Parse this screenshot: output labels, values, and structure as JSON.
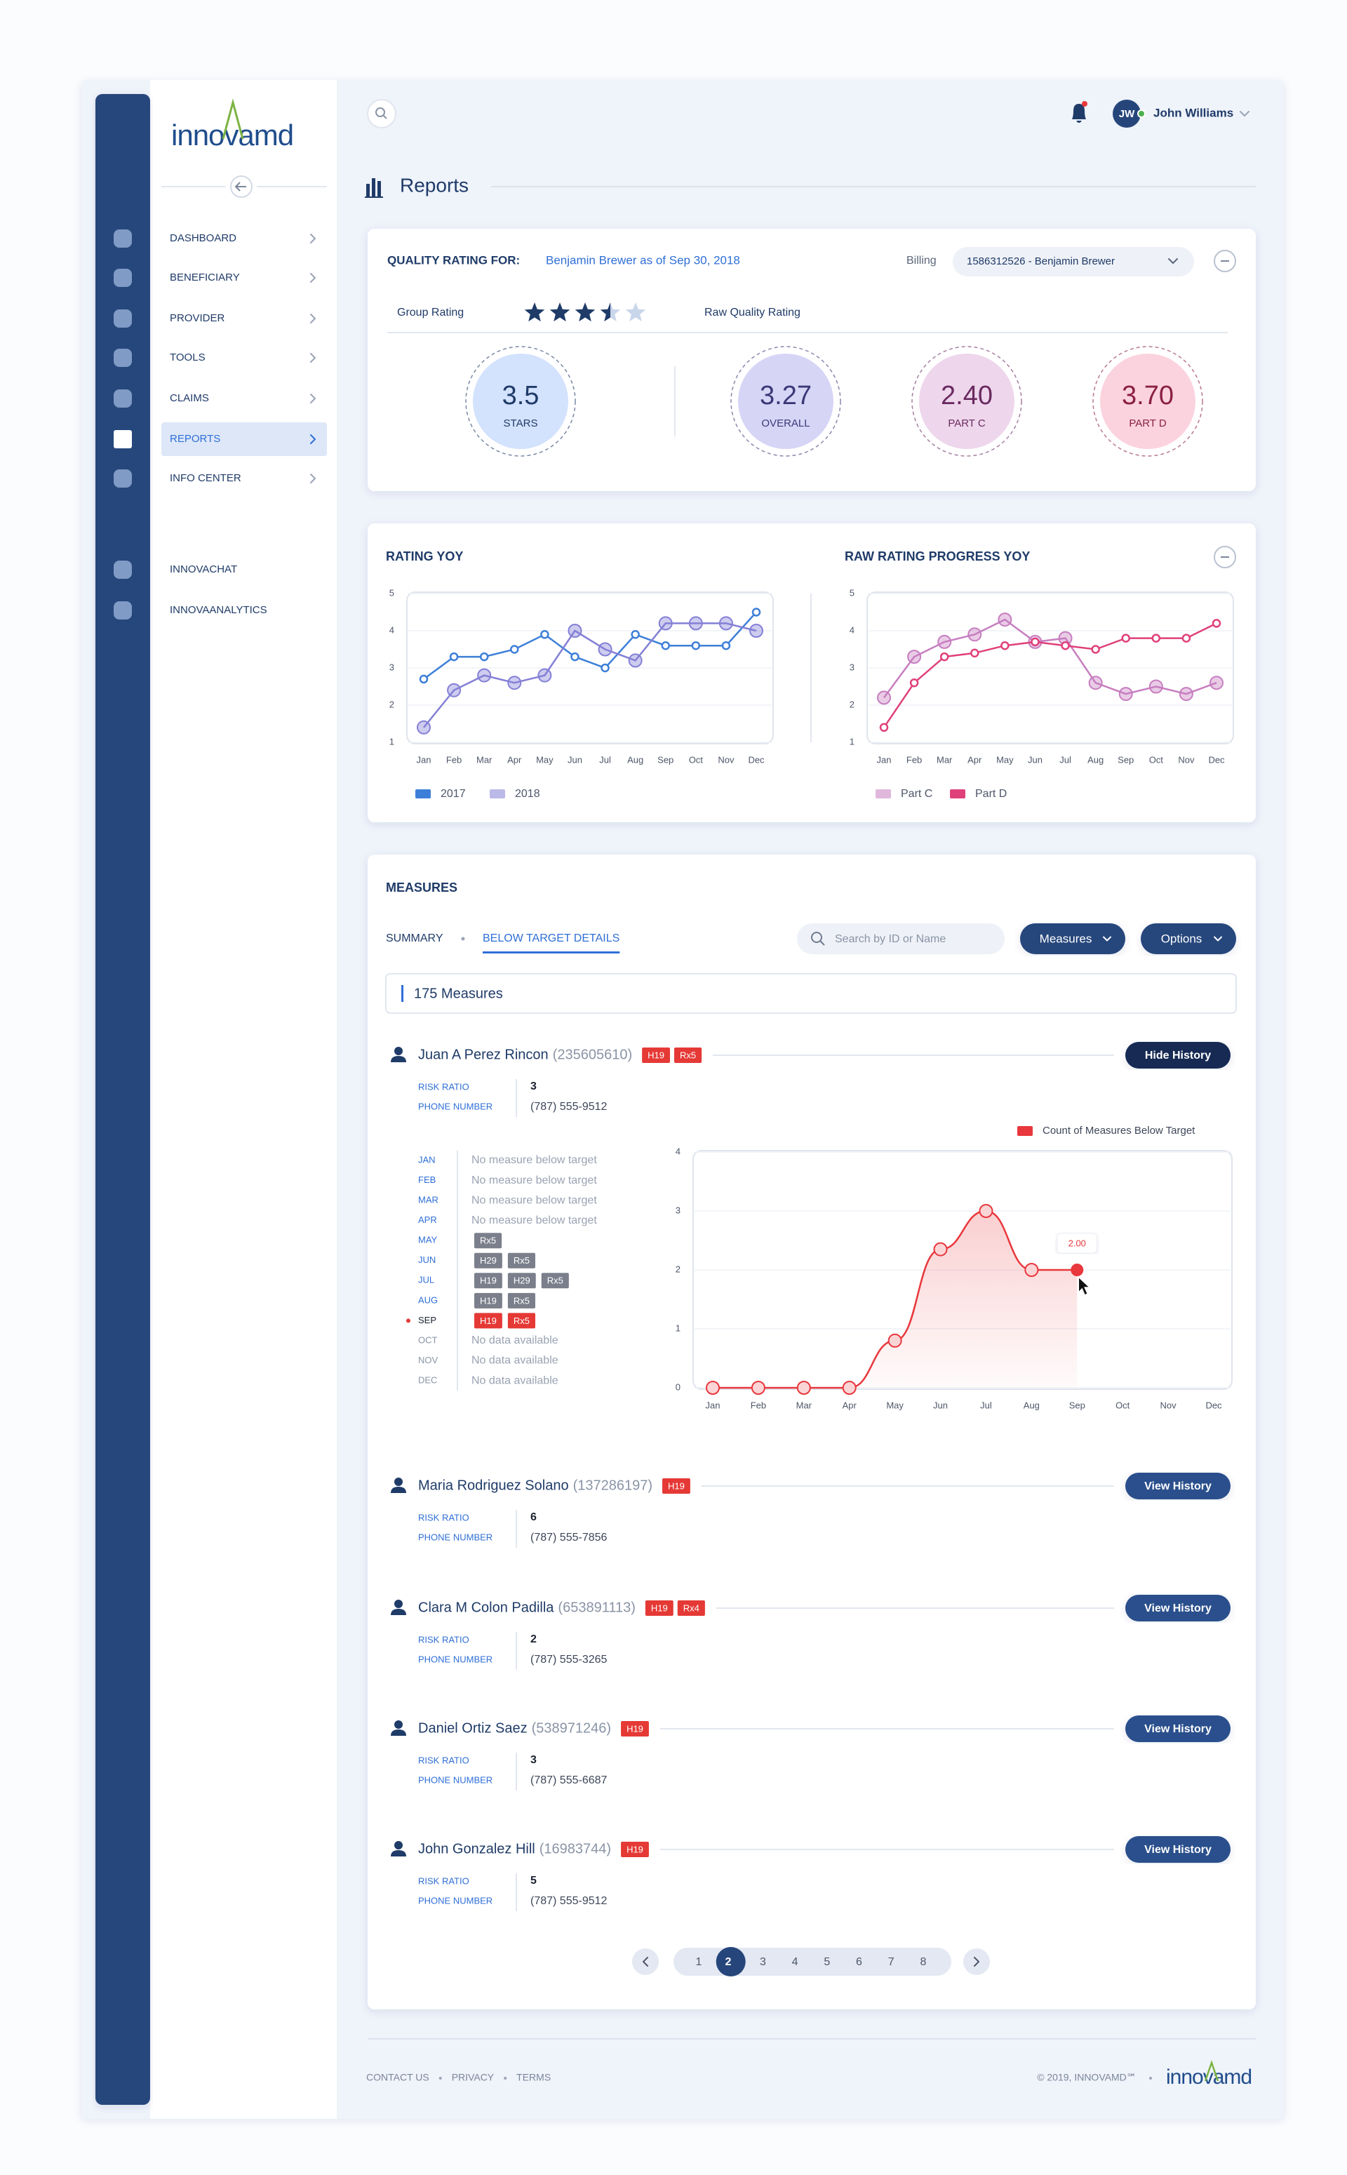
{
  "logo": "innovamd",
  "nav": {
    "items": [
      "DASHBOARD",
      "BENEFICIARY",
      "PROVIDER",
      "TOOLS",
      "CLAIMS",
      "REPORTS",
      "INFO CENTER"
    ],
    "active": 5,
    "extra": [
      "INNOVACHAT",
      "INNOVAANALYTICS"
    ]
  },
  "user": {
    "initials": "JW",
    "name": "John Williams"
  },
  "page_title": "Reports",
  "quality": {
    "label": "QUALITY RATING FOR:",
    "subject": "Benjamin Brewer as of Sep 30, 2018",
    "billing_label": "Billing",
    "billing_value": "1586312526 - Benjamin Brewer",
    "group_label": "Group Rating",
    "stars": 3.5,
    "raw_label": "Raw Quality Rating",
    "ratings": [
      {
        "value": "3.5",
        "label": "STARS",
        "color": "#d3e2fd",
        "accent": "#1f3b68"
      },
      {
        "value": "3.27",
        "label": "OVERALL",
        "color": "#d6d5f6",
        "accent": "#3b3878"
      },
      {
        "value": "2.40",
        "label": "PART C",
        "color": "#eed6ec",
        "accent": "#6a2a60"
      },
      {
        "value": "3.70",
        "label": "PART D",
        "color": "#fbd3de",
        "accent": "#8a1f45"
      }
    ]
  },
  "chart_data": [
    {
      "type": "line",
      "title": "RATING YOY",
      "categories": [
        "Jan",
        "Feb",
        "Mar",
        "Apr",
        "May",
        "Jun",
        "Jul",
        "Aug",
        "Sep",
        "Oct",
        "Nov",
        "Dec"
      ],
      "ylim": [
        1,
        5
      ],
      "yticks": [
        1,
        2,
        3,
        4,
        5
      ],
      "grid": true,
      "series": [
        {
          "name": "2017",
          "color": "#3d7fd8",
          "marker": "small",
          "values": [
            2.7,
            3.3,
            3.3,
            3.5,
            3.9,
            3.3,
            3.0,
            3.9,
            3.6,
            3.6,
            3.6,
            4.5
          ]
        },
        {
          "name": "2018",
          "color": "#8480d6",
          "marker": "large",
          "values": [
            1.4,
            2.4,
            2.8,
            2.6,
            2.8,
            4.0,
            3.5,
            3.2,
            4.2,
            4.2,
            4.2,
            4.0
          ]
        }
      ]
    },
    {
      "type": "line",
      "title": "RAW RATING PROGRESS YOY",
      "categories": [
        "Jan",
        "Feb",
        "Mar",
        "Apr",
        "May",
        "Jun",
        "Jul",
        "Aug",
        "Sep",
        "Oct",
        "Nov",
        "Dec"
      ],
      "ylim": [
        1,
        5
      ],
      "yticks": [
        1,
        2,
        3,
        4,
        5
      ],
      "grid": true,
      "series": [
        {
          "name": "Part C",
          "color": "#c77ec0",
          "marker": "large",
          "values": [
            2.2,
            3.3,
            3.7,
            3.9,
            4.3,
            3.7,
            3.8,
            2.6,
            2.3,
            2.5,
            2.3,
            2.6
          ]
        },
        {
          "name": "Part D",
          "color": "#e0407a",
          "marker": "small",
          "values": [
            1.4,
            2.6,
            3.3,
            3.4,
            3.6,
            3.7,
            3.6,
            3.5,
            3.8,
            3.8,
            3.8,
            4.2
          ]
        }
      ]
    },
    {
      "type": "area",
      "categories": [
        "Jan",
        "Feb",
        "Mar",
        "Apr",
        "May",
        "Jun",
        "Jul",
        "Aug",
        "Sep",
        "Oct",
        "Nov",
        "Dec"
      ],
      "ylim": [
        0,
        4
      ],
      "yticks": [
        0,
        1,
        2,
        3,
        4
      ],
      "grid": true,
      "series": [
        {
          "name": "Count of Measures Below Target",
          "color": "#e8383d",
          "values": [
            0,
            0,
            0,
            0,
            0.8,
            2.35,
            3,
            2,
            2,
            null,
            null,
            null
          ],
          "value_labels": [
            null,
            null,
            null,
            null,
            null,
            null,
            null,
            null,
            "2.00",
            null,
            null,
            null
          ]
        }
      ]
    }
  ],
  "measures": {
    "title": "MEASURES",
    "tabs": [
      "SUMMARY",
      "BELOW TARGET DETAILS"
    ],
    "active_tab": 1,
    "search_placeholder": "Search by ID or Name",
    "buttons": [
      "Measures",
      "Options"
    ],
    "count": "175 Measures"
  },
  "labels": {
    "risk": "RISK RATIO",
    "phone": "PHONE NUMBER"
  },
  "patients": [
    {
      "name": "Juan A Perez Rincon",
      "id": "(235605610)",
      "tags": [
        "H19",
        "Rx5"
      ],
      "risk": 3,
      "phone": "(787) 555-9512",
      "button": "Hide History"
    },
    {
      "name": "Maria Rodriguez Solano",
      "id": "(137286197)",
      "tags": [
        "H19"
      ],
      "risk": 6,
      "phone": "(787) 555-7856",
      "button": "View History"
    },
    {
      "name": "Clara M Colon Padilla",
      "id": "(653891113)",
      "tags": [
        "H19",
        "Rx4"
      ],
      "risk": 2,
      "phone": "(787) 555-3265",
      "button": "View History"
    },
    {
      "name": "Daniel Ortiz Saez",
      "id": "(538971246)",
      "tags": [
        "H19"
      ],
      "risk": 3,
      "phone": "(787) 555-6687",
      "button": "View History"
    },
    {
      "name": "John Gonzalez Hill",
      "id": "(16983744)",
      "tags": [
        "H19"
      ],
      "risk": 5,
      "phone": "(787) 555-9512",
      "button": "View History"
    }
  ],
  "history": {
    "current": 8,
    "months": [
      {
        "month": "JAN",
        "note": "No measure below target"
      },
      {
        "month": "FEB",
        "note": "No measure below target"
      },
      {
        "month": "MAR",
        "note": "No measure below target"
      },
      {
        "month": "APR",
        "note": "No measure below target"
      },
      {
        "month": "MAY",
        "tags": [
          "Rx5"
        ]
      },
      {
        "month": "JUN",
        "tags": [
          "H29",
          "Rx5"
        ]
      },
      {
        "month": "JUL",
        "tags": [
          "H19",
          "H29",
          "Rx5"
        ]
      },
      {
        "month": "AUG",
        "tags": [
          "H19",
          "Rx5"
        ]
      },
      {
        "month": "SEP",
        "tags": [
          "H19",
          "Rx5"
        ]
      },
      {
        "month": "OCT",
        "note": "No data available"
      },
      {
        "month": "NOV",
        "note": "No data available"
      },
      {
        "month": "DEC",
        "note": "No data available"
      }
    ]
  },
  "pagination": {
    "pages": [
      1,
      2,
      3,
      4,
      5,
      6,
      7,
      8
    ],
    "current": 2
  },
  "footer": {
    "links": [
      "CONTACT US",
      "PRIVACY",
      "TERMS"
    ],
    "copyright": "© 2019, INNOVAMD℠"
  }
}
